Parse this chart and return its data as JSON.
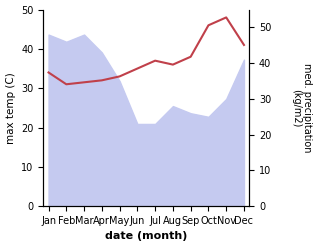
{
  "months": [
    "Jan",
    "Feb",
    "Mar",
    "Apr",
    "May",
    "Jun",
    "Jul",
    "Aug",
    "Sep",
    "Oct",
    "Nov",
    "Dec"
  ],
  "max_temp": [
    34,
    31,
    31.5,
    32,
    33,
    35,
    37,
    36,
    38,
    46,
    48,
    41
  ],
  "precipitation": [
    48,
    46,
    48,
    43,
    35,
    23,
    23,
    28,
    26,
    25,
    30,
    41
  ],
  "temp_ylim": [
    0,
    50
  ],
  "precip_ylim": [
    0,
    55
  ],
  "temp_color": "#c0404a",
  "precip_fill_color": "#c5caf0",
  "precip_line_color": "#c5caf0",
  "xlabel": "date (month)",
  "ylabel_left": "max temp (C)",
  "ylabel_right": "med. precipitation\n(kg/m2)",
  "bg_color": "#ffffff"
}
